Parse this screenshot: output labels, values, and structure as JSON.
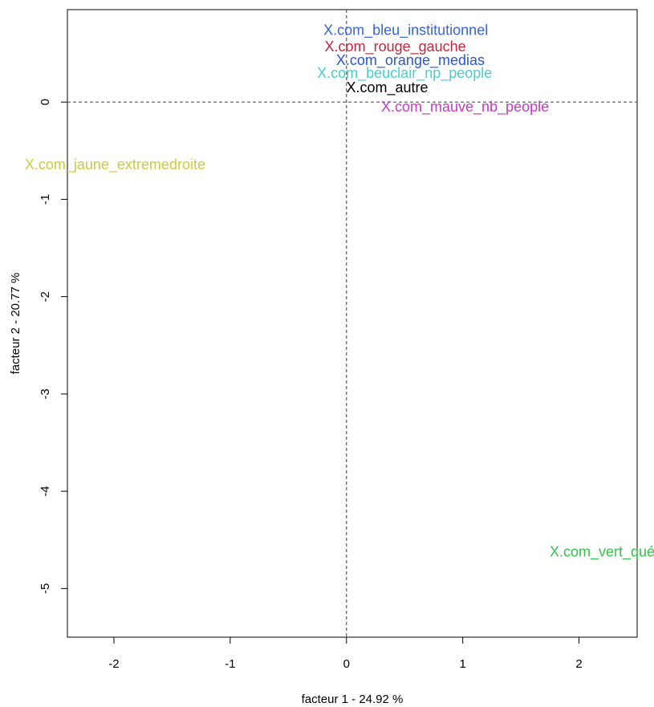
{
  "chart_data": {
    "type": "scatter",
    "title": "",
    "xlabel": "facteur  1  - 24.92 %",
    "ylabel": "facteur  2  - 20.77 %",
    "xlim": [
      -2.4,
      2.5
    ],
    "ylim": [
      -5.5,
      0.95
    ],
    "x_ticks": [
      -2,
      -1,
      0,
      1,
      2
    ],
    "y_ticks": [
      0,
      -1,
      -2,
      -3,
      -4,
      -5
    ],
    "x_tick_labels": [
      "-2",
      "-1",
      "0",
      "1",
      "2"
    ],
    "y_tick_labels": [
      "0",
      "-1",
      "-2",
      "-3",
      "-4",
      "-5"
    ],
    "reference_lines": {
      "x": 0,
      "y": 0,
      "style": "dashed"
    },
    "grid": false,
    "legend": "none",
    "points": [
      {
        "label": "X.com_bleu_institutionnel",
        "x": 0.51,
        "y": 0.74,
        "color": "#3a63d3"
      },
      {
        "label": "X.com_rouge_gauche",
        "x": 0.42,
        "y": 0.57,
        "color": "#c8243c"
      },
      {
        "label": "X.com_orange_medias",
        "x": 0.55,
        "y": 0.43,
        "color": "#2a56d6"
      },
      {
        "label": "X.com_beuclair_np_people",
        "x": 0.5,
        "y": 0.3,
        "color": "#44cfcf"
      },
      {
        "label": "X.com_autre",
        "x": 0.35,
        "y": 0.15,
        "color": "#000000"
      },
      {
        "label": "X.com_mauve_nb_people",
        "x": 1.02,
        "y": -0.05,
        "color": "#c63bc6"
      },
      {
        "label": "X.com_jaune_extremedroite",
        "x": -1.99,
        "y": -0.64,
        "color": "#cccc3a"
      },
      {
        "label": "X.com_vert_québec",
        "x": 2.3,
        "y": -4.62,
        "color": "#33c24a"
      }
    ]
  }
}
